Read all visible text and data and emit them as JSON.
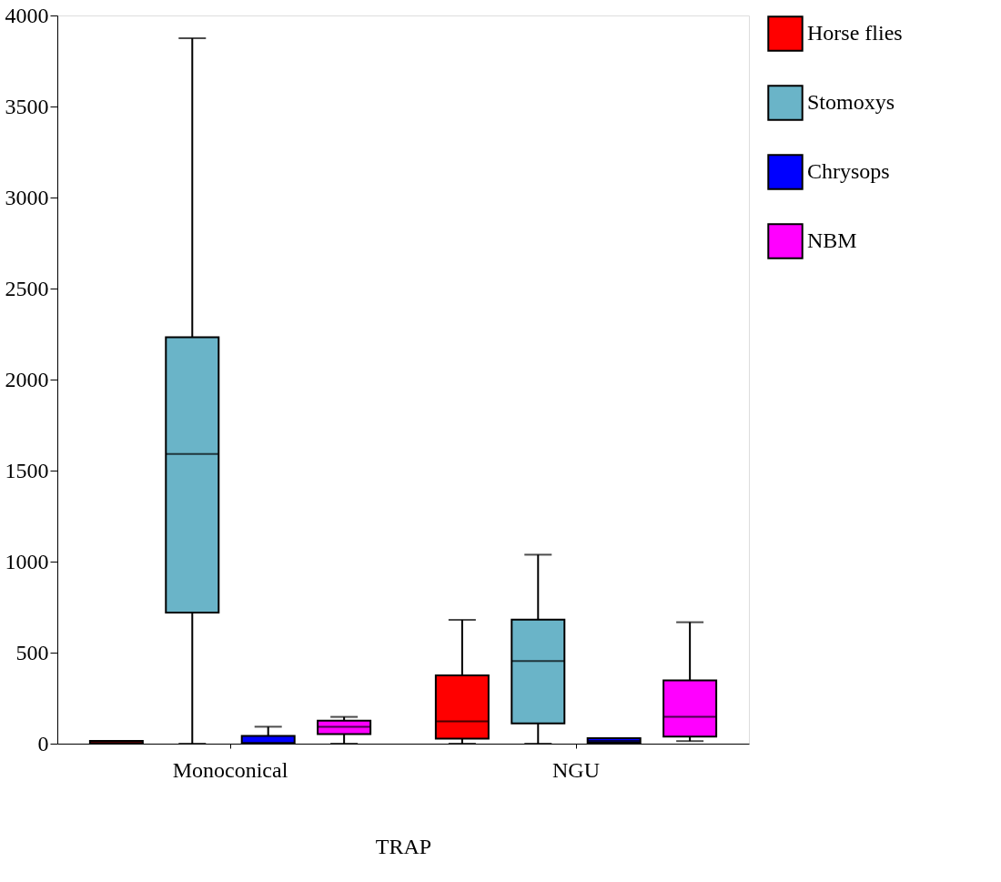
{
  "chart_data": {
    "type": "box",
    "xlabel": "TRAP",
    "categories": [
      "Monoconical",
      "NGU"
    ],
    "ylim": [
      0,
      4000
    ],
    "yticks": [
      0,
      500,
      1000,
      1500,
      2000,
      2500,
      3000,
      3500,
      4000
    ],
    "grid": false,
    "legend": "right",
    "series": [
      {
        "name": "Horse flies",
        "color": "#ff0000",
        "boxes": [
          {
            "low": 0,
            "q1": 0,
            "median": 5,
            "q3": 15,
            "high": 15
          },
          {
            "low": 0,
            "q1": 28,
            "median": 122,
            "q3": 375,
            "high": 680
          }
        ]
      },
      {
        "name": "Stomoxys",
        "color": "#6ab4c8",
        "boxes": [
          {
            "low": 0,
            "q1": 720,
            "median": 1591,
            "q3": 2233,
            "high": 3875
          },
          {
            "low": 0,
            "q1": 111,
            "median": 454,
            "q3": 681,
            "high": 1038
          }
        ]
      },
      {
        "name": "Chrysops",
        "color": "#0000ff",
        "boxes": [
          {
            "low": 0,
            "q1": 0,
            "median": 5,
            "q3": 42,
            "high": 93
          },
          {
            "low": 0,
            "q1": 5,
            "median": 15,
            "q3": 30,
            "high": 30
          }
        ]
      },
      {
        "name": "NBM",
        "color": "#ff00ff",
        "boxes": [
          {
            "low": 0,
            "q1": 53,
            "median": 92,
            "q3": 126,
            "high": 147
          },
          {
            "low": 14,
            "q1": 39,
            "median": 147,
            "q3": 348,
            "high": 667
          }
        ]
      }
    ]
  }
}
